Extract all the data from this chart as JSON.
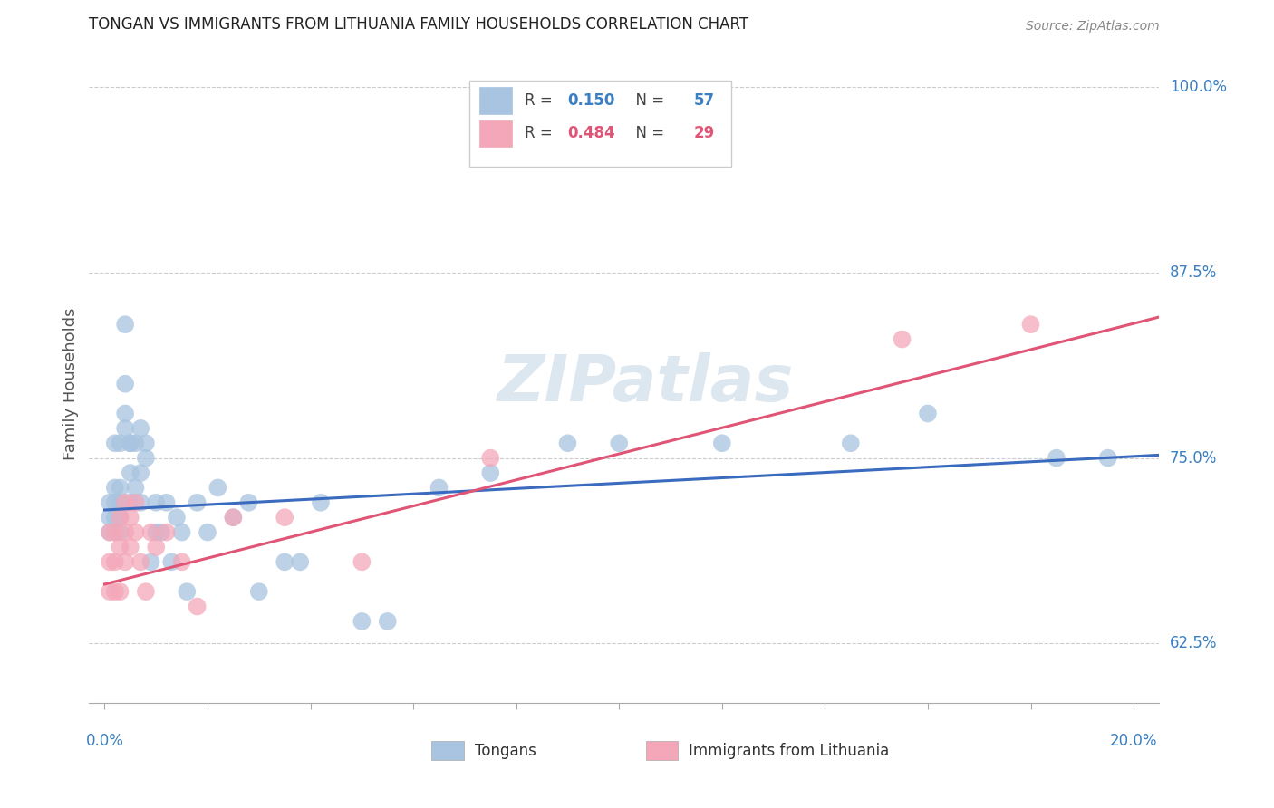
{
  "title": "TONGAN VS IMMIGRANTS FROM LITHUANIA FAMILY HOUSEHOLDS CORRELATION CHART",
  "source": "Source: ZipAtlas.com",
  "ylabel": "Family Households",
  "ylim": [
    0.585,
    1.015
  ],
  "xlim": [
    -0.003,
    0.205
  ],
  "blue_R": "0.150",
  "blue_N": "57",
  "pink_R": "0.484",
  "pink_N": "29",
  "blue_color": "#a8c4e0",
  "pink_color": "#f4a7b9",
  "blue_line_color": "#3a6bbf",
  "pink_line_color": "#e05575",
  "watermark": "ZIPatlas",
  "blue_line_x0": 0.0,
  "blue_line_y0": 0.715,
  "blue_line_x1": 0.205,
  "blue_line_y1": 0.752,
  "pink_line_x0": 0.0,
  "pink_line_y0": 0.665,
  "pink_line_x1": 0.205,
  "pink_line_y1": 0.845,
  "tongan_x": [
    0.001,
    0.001,
    0.001,
    0.002,
    0.002,
    0.002,
    0.002,
    0.002,
    0.003,
    0.003,
    0.003,
    0.003,
    0.003,
    0.004,
    0.004,
    0.004,
    0.004,
    0.005,
    0.005,
    0.005,
    0.005,
    0.006,
    0.006,
    0.007,
    0.007,
    0.007,
    0.008,
    0.008,
    0.009,
    0.01,
    0.01,
    0.011,
    0.012,
    0.013,
    0.014,
    0.015,
    0.016,
    0.018,
    0.02,
    0.022,
    0.025,
    0.028,
    0.03,
    0.035,
    0.038,
    0.042,
    0.05,
    0.055,
    0.065,
    0.075,
    0.09,
    0.1,
    0.12,
    0.145,
    0.16,
    0.185,
    0.195
  ],
  "tongan_y": [
    0.71,
    0.72,
    0.7,
    0.7,
    0.71,
    0.73,
    0.76,
    0.72,
    0.71,
    0.7,
    0.72,
    0.73,
    0.76,
    0.78,
    0.8,
    0.84,
    0.77,
    0.72,
    0.74,
    0.76,
    0.76,
    0.73,
    0.76,
    0.77,
    0.74,
    0.72,
    0.75,
    0.76,
    0.68,
    0.72,
    0.7,
    0.7,
    0.72,
    0.68,
    0.71,
    0.7,
    0.66,
    0.72,
    0.7,
    0.73,
    0.71,
    0.72,
    0.66,
    0.68,
    0.68,
    0.72,
    0.64,
    0.64,
    0.73,
    0.74,
    0.76,
    0.76,
    0.76,
    0.76,
    0.78,
    0.75,
    0.75
  ],
  "lithuania_x": [
    0.001,
    0.001,
    0.001,
    0.002,
    0.002,
    0.002,
    0.003,
    0.003,
    0.003,
    0.004,
    0.004,
    0.004,
    0.005,
    0.005,
    0.006,
    0.006,
    0.007,
    0.008,
    0.009,
    0.01,
    0.012,
    0.015,
    0.018,
    0.025,
    0.035,
    0.05,
    0.075,
    0.155,
    0.18
  ],
  "lithuania_y": [
    0.7,
    0.68,
    0.66,
    0.68,
    0.66,
    0.7,
    0.66,
    0.69,
    0.71,
    0.68,
    0.7,
    0.72,
    0.69,
    0.71,
    0.7,
    0.72,
    0.68,
    0.66,
    0.7,
    0.69,
    0.7,
    0.68,
    0.65,
    0.71,
    0.71,
    0.68,
    0.75,
    0.83,
    0.84
  ]
}
